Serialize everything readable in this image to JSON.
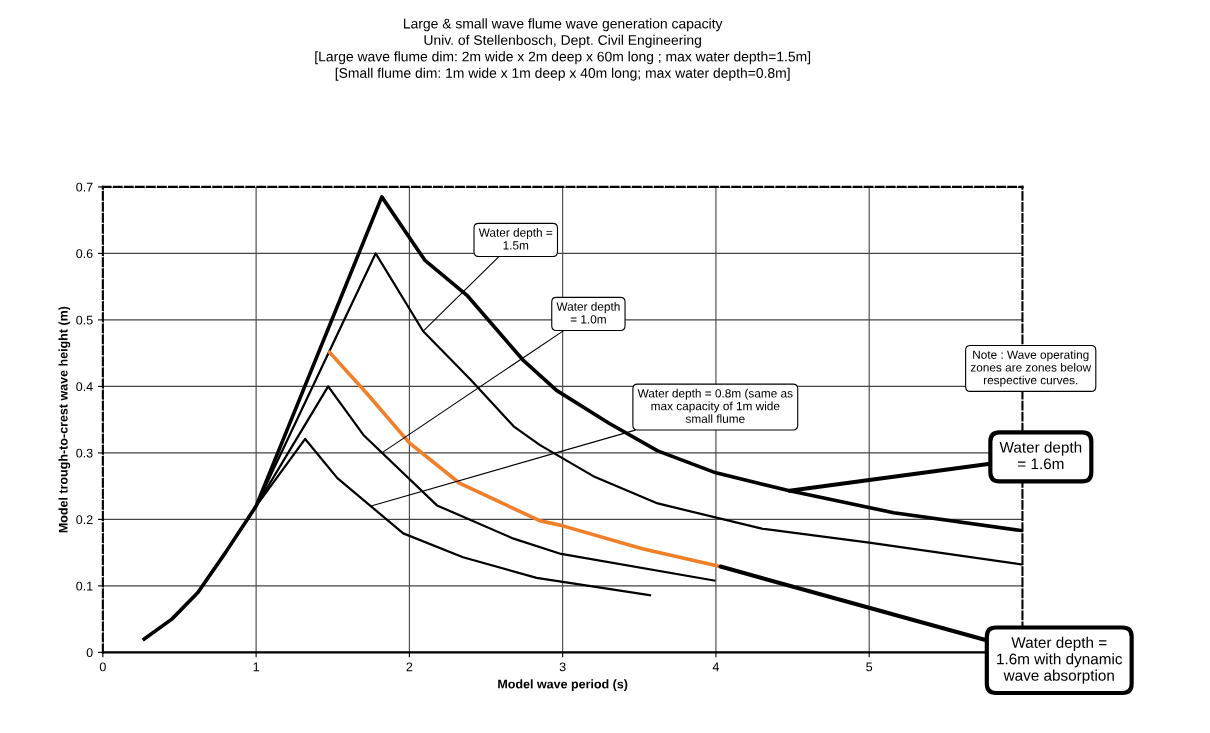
{
  "chart_data": {
    "type": "line",
    "title": "Large & small wave flume wave generation capacity\nUniv. of Stellenbosch, Dept. Civil Engineering\n[Large wave flume dim: 2m wide x 2m deep x 60m long ; max water depth=1.5m]\n[Small flume dim: 1m wide x 1m deep x 40m long; max water depth=0.8m]",
    "xlabel": "Model wave period (s)",
    "ylabel": "Model trough-to-crest wave height (m)",
    "xlim": [
      0,
      6
    ],
    "xticks": [
      0,
      1,
      2,
      3,
      4,
      5
    ],
    "ylim": [
      0,
      0.7
    ],
    "yticks": [
      0,
      0.1,
      0.2,
      0.3,
      0.4,
      0.5,
      0.6,
      0.7
    ],
    "grid": true,
    "marker": "none",
    "line_style": "solid",
    "series": [
      {
        "color": "#000000",
        "x": [
          0.27,
          0.45,
          0.62,
          0.8,
          1.0,
          1.82,
          2.1,
          2.38,
          2.74,
          2.96,
          3.3,
          3.62,
          4.0,
          4.48,
          5.16,
          6.0
        ],
        "values": [
          0.02,
          0.05,
          0.09,
          0.15,
          0.22,
          0.685,
          0.59,
          0.536,
          0.44,
          0.394,
          0.345,
          0.303,
          0.27,
          0.243,
          0.21,
          0.183
        ]
      },
      {
        "color": "#000000",
        "x": [
          0.27,
          0.45,
          0.62,
          0.8,
          1.0,
          1.78,
          2.09,
          2.4,
          2.68,
          2.85,
          3.2,
          3.62,
          4.3,
          5.0,
          6.0
        ],
        "values": [
          0.02,
          0.05,
          0.09,
          0.15,
          0.22,
          0.6,
          0.483,
          0.41,
          0.34,
          0.312,
          0.265,
          0.224,
          0.186,
          0.165,
          0.132
        ]
      },
      {
        "color": "#f07f2a",
        "x": [
          1.48,
          1.72,
          2.0,
          2.33,
          2.85,
          2.99,
          3.52,
          4.03
        ],
        "values": [
          0.451,
          0.39,
          0.315,
          0.254,
          0.198,
          0.191,
          0.156,
          0.129
        ]
      },
      {
        "color": "#000000",
        "x": [
          0.27,
          0.45,
          0.62,
          0.8,
          1.0,
          1.47,
          1.7,
          2.18,
          2.68,
          2.99,
          3.99
        ],
        "values": [
          0.02,
          0.05,
          0.09,
          0.15,
          0.22,
          0.4,
          0.327,
          0.221,
          0.171,
          0.148,
          0.108
        ]
      },
      {
        "color": "#000000",
        "x": [
          0.27,
          0.45,
          0.62,
          0.8,
          1.0,
          1.32,
          1.53,
          1.96,
          2.35,
          2.83,
          3.57
        ],
        "values": [
          0.02,
          0.05,
          0.09,
          0.15,
          0.22,
          0.321,
          0.262,
          0.179,
          0.143,
          0.112,
          0.086
        ]
      }
    ],
    "annotations": [
      {
        "text": "Water depth =\n1.5m",
        "x": 2.09,
        "y": 0.483
      },
      {
        "text": "Water depth\n= 1.0m",
        "x": 1.82,
        "y": 0.3
      },
      {
        "text": "Water depth = 0.8m (same as\nmax capacity of 1m wide\nsmall flume",
        "x": 1.75,
        "y": 0.22
      },
      "Note : Wave operating\nzones are zones below\nrespective curves.",
      {
        "text": "Water depth\n= 1.6m",
        "x": 4.48,
        "y": 0.243
      },
      {
        "text": "Water depth =\n1.6m with dynamic\nwave absorption",
        "x": 4.03,
        "y": 0.129
      }
    ]
  }
}
